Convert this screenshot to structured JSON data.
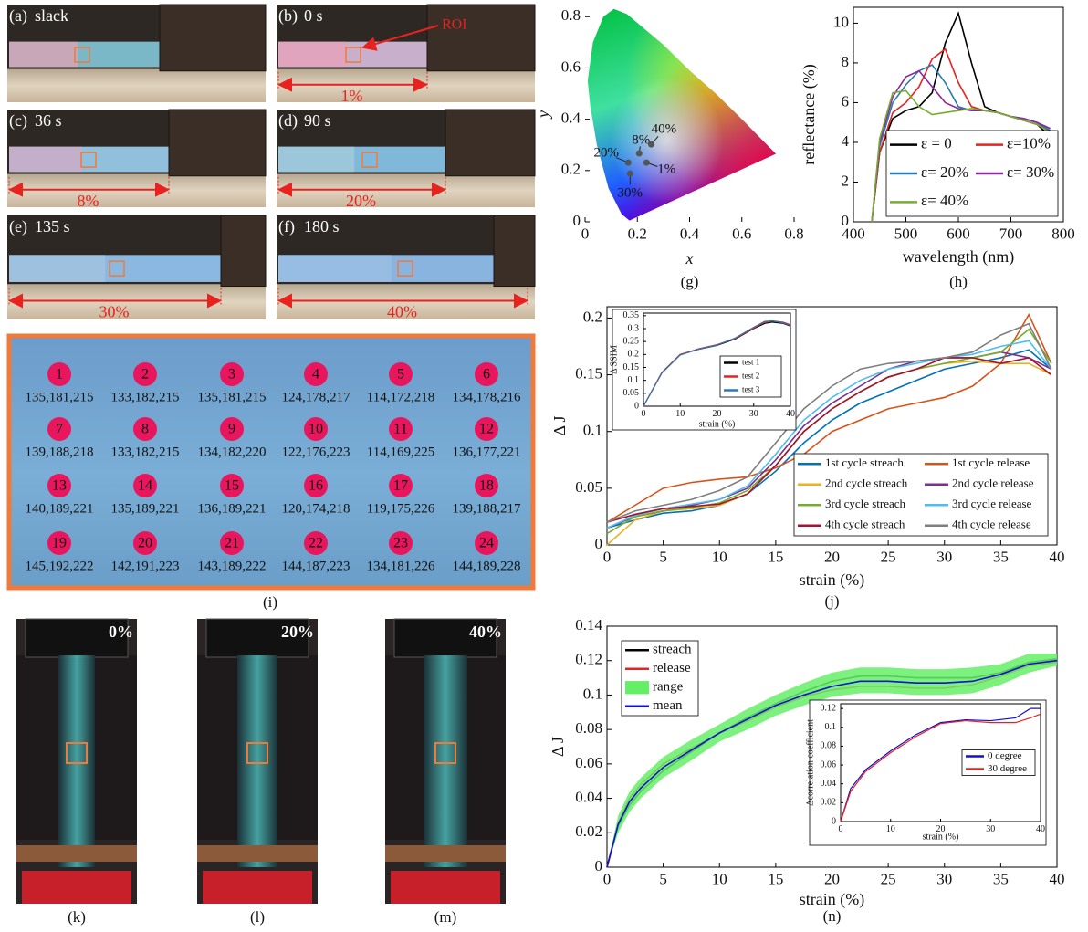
{
  "photos": [
    {
      "label": "(a)",
      "time": "slack"
    },
    {
      "label": "(b)",
      "time": "0 s",
      "strain": "1%",
      "roi": "ROI"
    },
    {
      "label": "(c)",
      "time": "36 s",
      "strain": "8%"
    },
    {
      "label": "(d)",
      "time": "90 s",
      "strain": "20%"
    },
    {
      "label": "(e)",
      "time": "135 s",
      "strain": "30%"
    },
    {
      "label": "(f)",
      "time": "180 s",
      "strain": "40%"
    }
  ],
  "grid_panel": {
    "caption": "(i)",
    "cells": [
      {
        "id": "1",
        "rgb": "135,181,215"
      },
      {
        "id": "2",
        "rgb": "133,182,215"
      },
      {
        "id": "3",
        "rgb": "135,181,215"
      },
      {
        "id": "4",
        "rgb": "124,178,217"
      },
      {
        "id": "5",
        "rgb": "114,172,218"
      },
      {
        "id": "6",
        "rgb": "134,178,216"
      },
      {
        "id": "7",
        "rgb": "139,188,218"
      },
      {
        "id": "8",
        "rgb": "133,182,215"
      },
      {
        "id": "9",
        "rgb": "134,182,220"
      },
      {
        "id": "10",
        "rgb": "122,176,223"
      },
      {
        "id": "11",
        "rgb": "114,169,225"
      },
      {
        "id": "12",
        "rgb": "136,177,221"
      },
      {
        "id": "13",
        "rgb": "140,189,221"
      },
      {
        "id": "14",
        "rgb": "135,189,221"
      },
      {
        "id": "15",
        "rgb": "136,189,221"
      },
      {
        "id": "16",
        "rgb": "120,174,218"
      },
      {
        "id": "17",
        "rgb": "119,175,226"
      },
      {
        "id": "18",
        "rgb": "139,188,217"
      },
      {
        "id": "19",
        "rgb": "145,192,222"
      },
      {
        "id": "20",
        "rgb": "142,191,223"
      },
      {
        "id": "21",
        "rgb": "143,189,222"
      },
      {
        "id": "22",
        "rgb": "144,187,223"
      },
      {
        "id": "23",
        "rgb": "134,181,226"
      },
      {
        "id": "24",
        "rgb": "144,189,228"
      }
    ]
  },
  "strain_photos": [
    {
      "caption": "(k)",
      "strain": "0%"
    },
    {
      "caption": "(l)",
      "strain": "20%"
    },
    {
      "caption": "(m)",
      "strain": "40%"
    }
  ],
  "chart_data": [
    {
      "type": "scatter",
      "caption": "(g)",
      "xlabel": "x",
      "ylabel": "y",
      "xlim": [
        0,
        0.8
      ],
      "ylim": [
        0,
        0.84
      ],
      "xticks": [
        0,
        0.2,
        0.4,
        0.6,
        0.8
      ],
      "yticks": [
        0,
        0.2,
        0.4,
        0.6,
        0.8
      ],
      "color": "#555555",
      "x": [
        0.235,
        0.207,
        0.165,
        0.172,
        0.253
      ],
      "values": [
        0.231,
        0.267,
        0.231,
        0.188,
        0.302
      ],
      "point_labels": [
        "1%",
        "8%",
        "20%",
        "30%",
        "40%"
      ]
    },
    {
      "type": "line",
      "caption": "(h)",
      "xlabel": "wavelength (nm)",
      "ylabel": "reflectance (%)",
      "xlim": [
        400,
        800
      ],
      "ylim": [
        0,
        10.8
      ],
      "xticks": [
        400,
        500,
        600,
        700,
        800
      ],
      "yticks": [
        0,
        2,
        4,
        6,
        8,
        10
      ],
      "legend": "lower right",
      "x": [
        435,
        450,
        475,
        500,
        525,
        550,
        575,
        600,
        625,
        650,
        675,
        700,
        725,
        750,
        775
      ],
      "series": [
        {
          "name": "ε = 0",
          "color": "#000000",
          "values": [
            0,
            3.5,
            5.2,
            5.6,
            5.8,
            6.5,
            9,
            10.5,
            8,
            5.8,
            5.5,
            5.3,
            5.1,
            4.9,
            4.3
          ]
        },
        {
          "name": "ε=10%",
          "color": "#e8221f",
          "values": [
            0,
            3.5,
            5.5,
            6.0,
            6.8,
            8.2,
            8.7,
            7,
            5.8,
            5.6,
            5.5,
            5.3,
            5.2,
            5.0,
            4.5
          ]
        },
        {
          "name": "ε= 20%",
          "color": "#2a7ab0",
          "values": [
            0,
            3.8,
            6.0,
            6.9,
            7.6,
            7.9,
            7.0,
            5.8,
            5.6,
            5.6,
            5.5,
            5.3,
            5.2,
            5.0,
            4.6
          ]
        },
        {
          "name": "ε= 30%",
          "color": "#8b2a9b",
          "values": [
            0,
            4.0,
            6.3,
            7.3,
            7.6,
            6.8,
            6.0,
            5.7,
            5.6,
            5.6,
            5.5,
            5.3,
            5.2,
            5.0,
            4.7
          ]
        },
        {
          "name": "ε= 40%",
          "color": "#77ac30",
          "values": [
            0,
            4.2,
            6.5,
            6.6,
            5.8,
            5.4,
            5.5,
            5.6,
            5.7,
            5.6,
            5.5,
            5.3,
            5.1,
            4.9,
            4.5
          ]
        }
      ]
    },
    {
      "type": "line",
      "caption": "(j)",
      "xlabel": "strain (%)",
      "ylabel": "Δ J",
      "xlim": [
        0,
        40
      ],
      "ylim": [
        0,
        0.21
      ],
      "xticks": [
        0,
        5,
        10,
        15,
        20,
        25,
        30,
        35,
        40
      ],
      "yticks": [
        0,
        0.05,
        0.1,
        0.15,
        0.2
      ],
      "legend": "lower right",
      "x": [
        0,
        2.5,
        5,
        7.5,
        10,
        12.5,
        15,
        17.5,
        20,
        22.5,
        25,
        27.5,
        30,
        32.5,
        35,
        37.5,
        39.5
      ],
      "series": [
        {
          "name": "1st cycle streach",
          "color": "#0072bd",
          "values": [
            0.015,
            0.022,
            0.028,
            0.03,
            0.035,
            0.045,
            0.065,
            0.09,
            0.11,
            0.125,
            0.135,
            0.145,
            0.155,
            0.16,
            0.165,
            0.172,
            0.155
          ]
        },
        {
          "name": "1st cycle release",
          "color": "#d95319",
          "values": [
            0.02,
            0.035,
            0.05,
            0.055,
            0.058,
            0.06,
            0.068,
            0.08,
            0.1,
            0.11,
            0.12,
            0.125,
            0.13,
            0.14,
            0.16,
            0.203,
            0.16
          ]
        },
        {
          "name": "2nd cycle streach",
          "color": "#edb120",
          "values": [
            0.0,
            0.022,
            0.03,
            0.032,
            0.035,
            0.045,
            0.07,
            0.1,
            0.12,
            0.135,
            0.148,
            0.155,
            0.16,
            0.162,
            0.16,
            0.16,
            0.15
          ]
        },
        {
          "name": "2nd cycle release",
          "color": "#7e2f8e",
          "values": [
            0.015,
            0.025,
            0.03,
            0.035,
            0.04,
            0.05,
            0.075,
            0.105,
            0.125,
            0.14,
            0.155,
            0.162,
            0.165,
            0.165,
            0.17,
            0.165,
            0.155
          ]
        },
        {
          "name": "3rd cycle streach",
          "color": "#77ac30",
          "values": [
            0.01,
            0.025,
            0.03,
            0.033,
            0.037,
            0.048,
            0.07,
            0.1,
            0.12,
            0.135,
            0.148,
            0.155,
            0.16,
            0.165,
            0.17,
            0.19,
            0.16
          ]
        },
        {
          "name": "3rd cycle release",
          "color": "#4dbeee",
          "values": [
            0.015,
            0.026,
            0.032,
            0.036,
            0.04,
            0.052,
            0.08,
            0.11,
            0.13,
            0.145,
            0.155,
            0.16,
            0.165,
            0.168,
            0.175,
            0.18,
            0.155
          ]
        },
        {
          "name": "4th cycle streach",
          "color": "#a2142f",
          "values": [
            0.02,
            0.027,
            0.032,
            0.034,
            0.036,
            0.045,
            0.07,
            0.1,
            0.12,
            0.135,
            0.148,
            0.155,
            0.165,
            0.165,
            0.16,
            0.165,
            0.15
          ]
        },
        {
          "name": "4th cycle release",
          "color": "#7f7f7f",
          "values": [
            0.02,
            0.03,
            0.035,
            0.04,
            0.048,
            0.06,
            0.09,
            0.12,
            0.14,
            0.155,
            0.16,
            0.162,
            0.165,
            0.17,
            0.185,
            0.195,
            0.155
          ]
        }
      ]
    },
    {
      "type": "line",
      "xlabel": "strain (%)",
      "ylabel": "Δ SSIM",
      "xlim": [
        0,
        40
      ],
      "ylim": [
        0,
        0.36
      ],
      "xticks": [
        0,
        10,
        20,
        30,
        40
      ],
      "yticks": [
        0,
        0.05,
        0.1,
        0.15,
        0.2,
        0.25,
        0.3,
        0.35
      ],
      "legend": "lower right",
      "x": [
        0,
        5,
        10,
        15,
        20,
        25,
        30,
        33,
        35,
        38,
        40
      ],
      "series": [
        {
          "name": "test 1",
          "color": "#000000",
          "values": [
            0,
            0.13,
            0.2,
            0.22,
            0.235,
            0.26,
            0.3,
            0.32,
            0.325,
            0.32,
            0.31
          ]
        },
        {
          "name": "test 2",
          "color": "#e8221f",
          "values": [
            0,
            0.13,
            0.2,
            0.222,
            0.238,
            0.262,
            0.302,
            0.325,
            0.33,
            0.325,
            0.315
          ]
        },
        {
          "name": "test 3",
          "color": "#2a7ab0",
          "values": [
            0,
            0.128,
            0.198,
            0.22,
            0.236,
            0.264,
            0.305,
            0.328,
            0.33,
            0.322,
            0.312
          ]
        }
      ]
    },
    {
      "type": "line",
      "caption": "(n)",
      "xlabel": "strain (%)",
      "ylabel": "Δ J",
      "xlim": [
        0,
        40
      ],
      "ylim": [
        0,
        0.14
      ],
      "xticks": [
        0,
        5,
        10,
        15,
        20,
        25,
        30,
        35,
        40
      ],
      "yticks": [
        0,
        0.02,
        0.04,
        0.06,
        0.08,
        0.1,
        0.12,
        0.14
      ],
      "legend": "upper left",
      "x": [
        0,
        1,
        2,
        3,
        5,
        7.5,
        10,
        12.5,
        15,
        17.5,
        20,
        22.5,
        25,
        27.5,
        30,
        32.5,
        35,
        37.5,
        40
      ],
      "series": [
        {
          "name": "streach",
          "color": "#000000",
          "values": [
            0,
            0.024,
            0.036,
            0.044,
            0.056,
            0.067,
            0.078,
            0.087,
            0.095,
            0.102,
            0.108,
            0.111,
            0.111,
            0.11,
            0.11,
            0.11,
            0.113,
            0.119,
            0.121
          ]
        },
        {
          "name": "release",
          "color": "#e8221f",
          "values": [
            0,
            0.026,
            0.04,
            0.048,
            0.06,
            0.069,
            0.078,
            0.085,
            0.093,
            0.099,
            0.103,
            0.105,
            0.105,
            0.104,
            0.104,
            0.106,
            0.111,
            0.117,
            0.119
          ]
        },
        {
          "name": "range",
          "color": "#66ee66",
          "high": [
            0,
            0.03,
            0.044,
            0.052,
            0.064,
            0.074,
            0.083,
            0.092,
            0.1,
            0.107,
            0.113,
            0.116,
            0.116,
            0.115,
            0.115,
            0.116,
            0.118,
            0.124,
            0.124
          ],
          "low": [
            0,
            0.02,
            0.032,
            0.04,
            0.052,
            0.062,
            0.073,
            0.08,
            0.088,
            0.094,
            0.099,
            0.101,
            0.101,
            0.1,
            0.1,
            0.101,
            0.106,
            0.113,
            0.117
          ]
        },
        {
          "name": "mean",
          "color": "#1010d0",
          "values": [
            0,
            0.025,
            0.038,
            0.046,
            0.058,
            0.068,
            0.078,
            0.086,
            0.094,
            0.1,
            0.105,
            0.108,
            0.108,
            0.107,
            0.107,
            0.108,
            0.112,
            0.118,
            0.12
          ]
        }
      ]
    },
    {
      "type": "line",
      "xlabel": "strain (%)",
      "ylabel": "Δcorrelation coefficient",
      "xlim": [
        0,
        40
      ],
      "ylim": [
        0,
        0.125
      ],
      "xticks": [
        0,
        10,
        20,
        30,
        40
      ],
      "yticks": [
        0,
        0.02,
        0.04,
        0.06,
        0.08,
        0.1,
        0.12
      ],
      "legend": "right",
      "x": [
        0,
        2,
        5,
        10,
        15,
        20,
        25,
        30,
        35,
        38,
        40
      ],
      "series": [
        {
          "name": "0 degree",
          "color": "#1010d0",
          "values": [
            0,
            0.035,
            0.055,
            0.075,
            0.092,
            0.105,
            0.108,
            0.107,
            0.11,
            0.12,
            0.12
          ]
        },
        {
          "name": "30 degree",
          "color": "#e8221f",
          "values": [
            0,
            0.032,
            0.053,
            0.073,
            0.09,
            0.104,
            0.107,
            0.105,
            0.105,
            0.11,
            0.114
          ]
        }
      ]
    }
  ]
}
